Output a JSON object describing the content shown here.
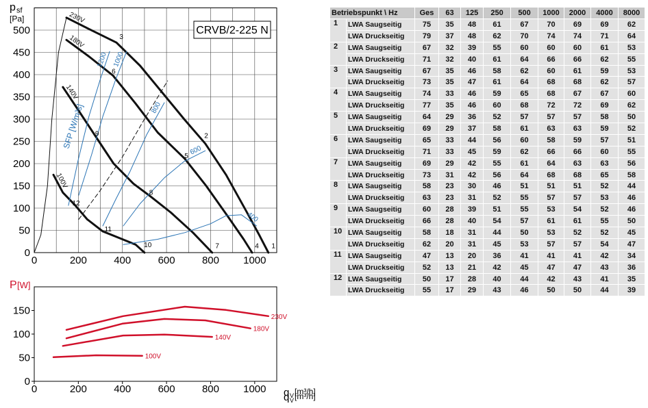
{
  "chart_data": [
    {
      "type": "line",
      "title": "CRVB/2-225 N",
      "y_label": "p",
      "y_label_sub": "sf",
      "y_unit": "[Pa]",
      "x_label": "q",
      "x_label_sub": "V",
      "x_unit": "[m³/h]",
      "sfp_label": "SFP [W/m³s]",
      "xlim": [
        0,
        1100
      ],
      "ylim": [
        0,
        550
      ],
      "xticks": [
        0,
        200,
        400,
        600,
        800,
        1000
      ],
      "x_minor_ticks": [
        100,
        300,
        500,
        700,
        900
      ],
      "yticks": [
        0,
        50,
        100,
        150,
        200,
        250,
        300,
        350,
        400,
        450,
        500
      ],
      "grid": true,
      "series": [
        {
          "name": "230V",
          "kind": "fan",
          "color": "#111111",
          "line_width": 3,
          "x": [
            146,
            250,
            373,
            480,
            580,
            680,
            776,
            870,
            960,
            1020,
            1062
          ],
          "values": [
            528,
            502,
            472,
            420,
            360,
            300,
            245,
            175,
            95,
            40,
            0
          ]
        },
        {
          "name": "180V",
          "kind": "fan",
          "color": "#111111",
          "line_width": 3,
          "x": [
            146,
            250,
            357,
            460,
            560,
            683,
            780,
            880,
            950,
            988
          ],
          "values": [
            478,
            440,
            398,
            335,
            270,
            211,
            150,
            80,
            30,
            0
          ]
        },
        {
          "name": "140V",
          "kind": "fan",
          "color": "#111111",
          "line_width": 3,
          "x": [
            130,
            200,
            280,
            360,
            450,
            528,
            620,
            720,
            807
          ],
          "values": [
            372,
            320,
            260,
            200,
            155,
            126,
            90,
            45,
            0
          ]
        },
        {
          "name": "100V",
          "kind": "fan",
          "color": "#111111",
          "line_width": 3,
          "x": [
            87,
            130,
            186,
            240,
            310,
            400,
            460,
            500
          ],
          "values": [
            175,
            135,
            106,
            75,
            48,
            30,
            18,
            0
          ]
        },
        {
          "name": "1200",
          "kind": "sfp",
          "color": "#2a74b5",
          "line_width": 1,
          "x": [
            155,
            200,
            248,
            300,
            342
          ],
          "values": [
            106,
            210,
            306,
            390,
            452
          ]
        },
        {
          "name": "1000",
          "kind": "sfp",
          "color": "#2a74b5",
          "line_width": 1,
          "x": [
            202,
            260,
            311,
            370,
            419
          ],
          "values": [
            129,
            220,
            306,
            390,
            452
          ]
        },
        {
          "name": "800",
          "kind": "sfp",
          "color": "#2a74b5",
          "line_width": 1,
          "x": [
            311,
            370,
            435,
            510,
            590
          ],
          "values": [
            60,
            120,
            183,
            265,
            337
          ]
        },
        {
          "name": "600",
          "kind": "sfp",
          "color": "#2a74b5",
          "line_width": 1,
          "x": [
            404,
            480,
            590,
            680,
            776
          ],
          "values": [
            60,
            110,
            168,
            205,
            229
          ]
        },
        {
          "name": "400",
          "kind": "sfp",
          "color": "#2a74b5",
          "line_width": 1,
          "x": [
            404,
            560,
            683,
            800,
            870,
            940,
            1009
          ],
          "values": [
            18,
            30,
            45,
            65,
            83,
            85,
            60
          ]
        },
        {
          "kind": "system",
          "color": "#111111",
          "line_width": 1,
          "x": [
            0,
            30,
            60,
            80,
            110,
            146
          ],
          "values": [
            0,
            40,
            150,
            300,
            450,
            528
          ]
        },
        {
          "kind": "system",
          "color": "#111111",
          "line_width": 1,
          "dash": true,
          "x": [
            202,
            300,
            400,
            500,
            605
          ],
          "values": [
            75,
            140,
            215,
            300,
            386
          ]
        }
      ],
      "annotations": [
        {
          "text": "1",
          "x": 1085,
          "y": 10
        },
        {
          "text": "2",
          "x": 780,
          "y": 258
        },
        {
          "text": "3",
          "x": 395,
          "y": 480
        },
        {
          "text": "4",
          "x": 1010,
          "y": 10
        },
        {
          "text": "5",
          "x": 690,
          "y": 212
        },
        {
          "text": "6",
          "x": 360,
          "y": 402
        },
        {
          "text": "7",
          "x": 830,
          "y": 10
        },
        {
          "text": "8",
          "x": 530,
          "y": 130
        },
        {
          "text": "9",
          "x": 285,
          "y": 262
        },
        {
          "text": "10",
          "x": 515,
          "y": 12
        },
        {
          "text": "11",
          "x": 335,
          "y": 48
        },
        {
          "text": "12",
          "x": 190,
          "y": 106
        }
      ]
    },
    {
      "type": "line",
      "y_label": "P",
      "y_unit": "[W]",
      "x_label": "q",
      "x_label_sub": "V",
      "x_unit": "[m³/h]",
      "xlim": [
        0,
        1100
      ],
      "ylim": [
        0,
        200
      ],
      "xticks": [
        0,
        200,
        400,
        600,
        800,
        1000
      ],
      "yticks": [
        0,
        50,
        100,
        150
      ],
      "grid": false,
      "series": [
        {
          "name": "230V",
          "kind": "power",
          "color": "#d0102a",
          "line_width": 2.5,
          "x": [
            146,
            403,
            683,
            870,
            1062
          ],
          "values": [
            109,
            138,
            158,
            151,
            138
          ]
        },
        {
          "name": "180V",
          "kind": "power",
          "color": "#d0102a",
          "line_width": 2.5,
          "x": [
            146,
            400,
            590,
            776,
            981
          ],
          "values": [
            91,
            122,
            132,
            129,
            112
          ]
        },
        {
          "name": "140V",
          "kind": "power",
          "color": "#d0102a",
          "line_width": 2.5,
          "x": [
            130,
            403,
            590,
            807
          ],
          "values": [
            75,
            97,
            99,
            94
          ]
        },
        {
          "name": "100V",
          "kind": "power",
          "color": "#d0102a",
          "line_width": 2.5,
          "x": [
            87,
            280,
            490
          ],
          "values": [
            51,
            55,
            54
          ]
        }
      ]
    }
  ],
  "table": {
    "header": [
      "Betriebspunkt \\ Hz",
      "Ges",
      "63",
      "125",
      "250",
      "500",
      "1000",
      "2000",
      "4000",
      "8000"
    ],
    "groups": [
      {
        "point": "1",
        "rows": [
          [
            "LWA Saugseitig",
            75,
            35,
            48,
            61,
            67,
            70,
            69,
            69,
            62
          ],
          [
            "LWA Druckseitig",
            79,
            37,
            48,
            62,
            70,
            74,
            74,
            71,
            64
          ]
        ]
      },
      {
        "point": "2",
        "rows": [
          [
            "LWA Saugseitig",
            67,
            32,
            39,
            55,
            60,
            60,
            60,
            61,
            53
          ],
          [
            "LWA Druckseitig",
            71,
            32,
            40,
            61,
            64,
            66,
            66,
            62,
            55
          ]
        ]
      },
      {
        "point": "3",
        "rows": [
          [
            "LWA Saugseitig",
            67,
            35,
            46,
            58,
            62,
            60,
            61,
            59,
            53
          ],
          [
            "LWA Druckseitig",
            73,
            35,
            47,
            61,
            64,
            68,
            68,
            62,
            57
          ]
        ]
      },
      {
        "point": "4",
        "rows": [
          [
            "LWA Saugseitig",
            74,
            33,
            46,
            59,
            65,
            68,
            67,
            67,
            60
          ],
          [
            "LWA Druckseitig",
            77,
            35,
            46,
            60,
            68,
            72,
            72,
            69,
            62
          ]
        ]
      },
      {
        "point": "5",
        "rows": [
          [
            "LWA Saugseitig",
            64,
            29,
            36,
            52,
            57,
            57,
            57,
            58,
            50
          ],
          [
            "LWA Druckseitig",
            69,
            29,
            37,
            58,
            61,
            63,
            63,
            59,
            52
          ]
        ]
      },
      {
        "point": "6",
        "rows": [
          [
            "LWA Saugseitig",
            65,
            33,
            44,
            56,
            60,
            58,
            59,
            57,
            51
          ],
          [
            "LWA Druckseitig",
            71,
            33,
            45,
            59,
            62,
            66,
            66,
            60,
            55
          ]
        ]
      },
      {
        "point": "7",
        "rows": [
          [
            "LWA Saugseitig",
            69,
            29,
            42,
            55,
            61,
            64,
            63,
            63,
            56
          ],
          [
            "LWA Druckseitig",
            73,
            31,
            42,
            56,
            64,
            68,
            68,
            65,
            58
          ]
        ]
      },
      {
        "point": "8",
        "rows": [
          [
            "LWA Saugseitig",
            58,
            23,
            30,
            46,
            51,
            51,
            51,
            52,
            44
          ],
          [
            "LWA Druckseitig",
            63,
            23,
            31,
            52,
            55,
            57,
            57,
            53,
            46
          ]
        ]
      },
      {
        "point": "9",
        "rows": [
          [
            "LWA Saugseitig",
            60,
            28,
            39,
            51,
            55,
            53,
            54,
            52,
            46
          ],
          [
            "LWA Druckseitig",
            66,
            28,
            40,
            54,
            57,
            61,
            61,
            55,
            50
          ]
        ]
      },
      {
        "point": "10",
        "rows": [
          [
            "LWA Saugseitig",
            58,
            18,
            31,
            44,
            50,
            53,
            52,
            52,
            45
          ],
          [
            "LWA Druckseitig",
            62,
            20,
            31,
            45,
            53,
            57,
            57,
            54,
            47
          ]
        ]
      },
      {
        "point": "11",
        "rows": [
          [
            "LWA Saugseitig",
            47,
            13,
            20,
            36,
            41,
            41,
            41,
            42,
            34
          ],
          [
            "LWA Druckseitig",
            52,
            13,
            21,
            42,
            45,
            47,
            47,
            43,
            36
          ]
        ]
      },
      {
        "point": "12",
        "rows": [
          [
            "LWA Saugseitig",
            50,
            17,
            28,
            40,
            44,
            42,
            43,
            41,
            35
          ],
          [
            "LWA Druckseitig",
            55,
            17,
            29,
            43,
            46,
            50,
            50,
            44,
            39
          ]
        ]
      }
    ]
  }
}
